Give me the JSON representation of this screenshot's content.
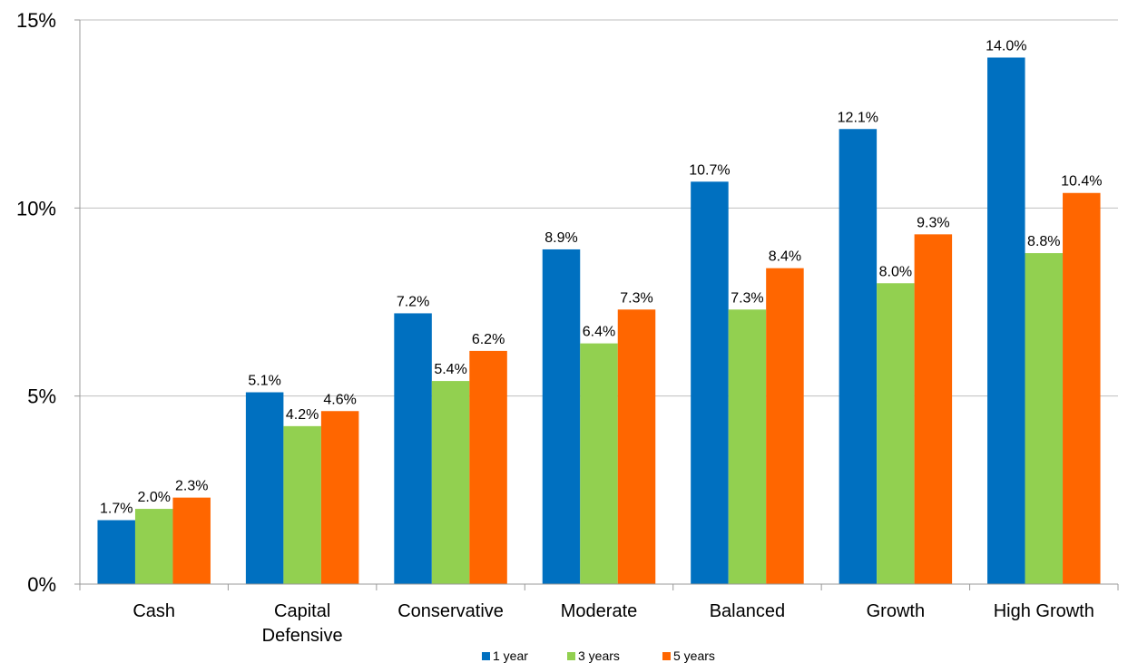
{
  "chart_data": {
    "type": "bar",
    "categories": [
      [
        "Cash"
      ],
      [
        "Capital",
        "Defensive"
      ],
      [
        "Conservative"
      ],
      [
        "Moderate"
      ],
      [
        "Balanced"
      ],
      [
        "Growth"
      ],
      [
        "High Growth"
      ]
    ],
    "series": [
      {
        "name": "1 year",
        "color": "#0070C0",
        "values": [
          1.7,
          5.1,
          7.2,
          8.9,
          10.7,
          12.1,
          14.0
        ],
        "labels": [
          "1.7%",
          "5.1%",
          "7.2%",
          "8.9%",
          "10.7%",
          "12.1%",
          "14.0%"
        ]
      },
      {
        "name": "3 years",
        "color": "#92D050",
        "values": [
          2.0,
          4.2,
          5.4,
          6.4,
          7.3,
          8.0,
          8.8
        ],
        "labels": [
          "2.0%",
          "4.2%",
          "5.4%",
          "6.4%",
          "7.3%",
          "8.0%",
          "8.8%"
        ]
      },
      {
        "name": "5 years",
        "color": "#FF6600",
        "values": [
          2.3,
          4.6,
          6.2,
          7.3,
          8.4,
          9.3,
          10.4
        ],
        "labels": [
          "2.3%",
          "4.6%",
          "6.2%",
          "7.3%",
          "8.4%",
          "9.3%",
          "10.4%"
        ]
      }
    ],
    "ylim": [
      0,
      15
    ],
    "yticks": [
      0,
      5,
      10,
      15
    ],
    "ytick_labels": [
      "0%",
      "5%",
      "10%",
      "15%"
    ],
    "grid": true,
    "legend_position": "bottom"
  }
}
